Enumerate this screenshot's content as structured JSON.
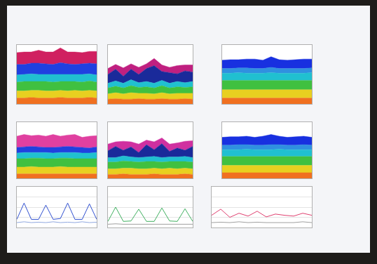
{
  "chart_data": [
    {
      "type": "area",
      "stacked": true,
      "x": [
        0,
        1,
        2,
        3,
        4,
        5,
        6,
        7,
        8,
        9,
        10,
        11
      ],
      "xlim": [
        0,
        11
      ],
      "ylim": [
        0,
        100
      ],
      "yticks": [
        0,
        25,
        50,
        75,
        100
      ],
      "grid": false,
      "tick_labels": false,
      "series": [
        {
          "color": "#f07020",
          "values": [
            10,
            10,
            11,
            10,
            10,
            10,
            11,
            10,
            10,
            10,
            11,
            10
          ]
        },
        {
          "color": "#e8d020",
          "values": [
            12,
            12,
            12,
            13,
            12,
            12,
            12,
            12,
            13,
            12,
            12,
            12
          ]
        },
        {
          "color": "#40c040",
          "values": [
            15,
            16,
            15,
            15,
            16,
            15,
            15,
            16,
            15,
            15,
            16,
            15
          ]
        },
        {
          "color": "#20c0d0",
          "values": [
            12,
            12,
            13,
            12,
            12,
            13,
            12,
            12,
            12,
            13,
            12,
            12
          ]
        },
        {
          "color": "#2040e0",
          "values": [
            18,
            17,
            18,
            19,
            18,
            17,
            20,
            18,
            17,
            18,
            18,
            19
          ]
        },
        {
          "color": "#d02060",
          "values": [
            20,
            21,
            19,
            22,
            20,
            21,
            25,
            20,
            21,
            19,
            20,
            21
          ]
        }
      ]
    },
    {
      "type": "area",
      "stacked": true,
      "x": [
        0,
        1,
        2,
        3,
        4,
        5,
        6,
        7,
        8,
        9,
        10,
        11
      ],
      "xlim": [
        0,
        11
      ],
      "ylim": [
        0,
        100
      ],
      "yticks": [
        0,
        25,
        50,
        75,
        100
      ],
      "grid": false,
      "tick_labels": false,
      "series": [
        {
          "color": "#f07020",
          "values": [
            8,
            9,
            8,
            8,
            9,
            8,
            8,
            9,
            8,
            8,
            9,
            8
          ]
        },
        {
          "color": "#e8d020",
          "values": [
            9,
            10,
            9,
            11,
            9,
            10,
            9,
            10,
            9,
            10,
            9,
            10
          ]
        },
        {
          "color": "#40c040",
          "values": [
            10,
            11,
            10,
            12,
            10,
            11,
            10,
            12,
            10,
            11,
            10,
            11
          ]
        },
        {
          "color": "#20c0d0",
          "values": [
            8,
            9,
            8,
            10,
            8,
            9,
            8,
            9,
            8,
            9,
            8,
            9
          ]
        },
        {
          "color": "#1a2a9a",
          "values": [
            15,
            20,
            12,
            18,
            14,
            22,
            30,
            15,
            18,
            13,
            20,
            16
          ]
        },
        {
          "color": "#c02080",
          "values": [
            10,
            8,
            14,
            9,
            12,
            8,
            12,
            11,
            9,
            14,
            10,
            12
          ]
        }
      ]
    },
    {
      "type": "area",
      "stacked": true,
      "x": [
        0,
        1,
        2,
        3,
        4,
        5,
        6,
        7,
        8,
        9,
        10,
        11
      ],
      "xlim": [
        0,
        11
      ],
      "ylim": [
        0,
        100
      ],
      "yticks": [
        0,
        25,
        50,
        75,
        100
      ],
      "grid": false,
      "tick_labels": false,
      "series": [
        {
          "color": "#f07020",
          "values": [
            10,
            10,
            10,
            10,
            10,
            10,
            10,
            10,
            10,
            10,
            10,
            10
          ]
        },
        {
          "color": "#e8d020",
          "values": [
            14,
            14,
            14,
            14,
            14,
            14,
            14,
            14,
            14,
            14,
            14,
            14
          ]
        },
        {
          "color": "#40c040",
          "values": [
            16,
            16,
            16,
            16,
            16,
            16,
            16,
            16,
            16,
            16,
            16,
            16
          ]
        },
        {
          "color": "#20c0d0",
          "values": [
            12,
            12,
            13,
            12,
            12,
            12,
            13,
            12,
            12,
            12,
            12,
            13
          ]
        },
        {
          "color": "#3090e0",
          "values": [
            8,
            8,
            8,
            9,
            8,
            8,
            9,
            8,
            8,
            8,
            8,
            8
          ]
        },
        {
          "color": "#1830e0",
          "values": [
            14,
            15,
            14,
            15,
            16,
            14,
            18,
            15,
            14,
            15,
            16,
            15
          ]
        }
      ]
    },
    {
      "type": "area",
      "stacked": true,
      "x": [
        0,
        1,
        2,
        3,
        4,
        5,
        6,
        7,
        8,
        9,
        10,
        11
      ],
      "xlim": [
        0,
        11
      ],
      "ylim": [
        0,
        100
      ],
      "yticks": [
        0,
        25,
        50,
        75,
        100
      ],
      "grid": false,
      "tick_labels": false,
      "series": [
        {
          "color": "#f07020",
          "values": [
            8,
            8,
            8,
            8,
            8,
            8,
            8,
            8,
            8,
            8,
            8,
            8
          ]
        },
        {
          "color": "#e8d020",
          "values": [
            12,
            12,
            13,
            12,
            12,
            12,
            13,
            12,
            12,
            12,
            12,
            12
          ]
        },
        {
          "color": "#40c040",
          "values": [
            15,
            15,
            15,
            16,
            15,
            15,
            15,
            16,
            15,
            15,
            15,
            15
          ]
        },
        {
          "color": "#20c0d0",
          "values": [
            10,
            11,
            10,
            10,
            11,
            10,
            10,
            10,
            11,
            10,
            10,
            11
          ]
        },
        {
          "color": "#2040e0",
          "values": [
            10,
            10,
            11,
            10,
            9,
            10,
            10,
            11,
            10,
            10,
            9,
            10
          ]
        },
        {
          "color": "#e040a0",
          "values": [
            20,
            22,
            19,
            21,
            20,
            23,
            19,
            20,
            22,
            18,
            21,
            20
          ]
        }
      ]
    },
    {
      "type": "area",
      "stacked": true,
      "x": [
        0,
        1,
        2,
        3,
        4,
        5,
        6,
        7,
        8,
        9,
        10,
        11
      ],
      "xlim": [
        0,
        11
      ],
      "ylim": [
        0,
        100
      ],
      "yticks": [
        0,
        25,
        50,
        75,
        100
      ],
      "grid": false,
      "tick_labels": false,
      "series": [
        {
          "color": "#f07020",
          "values": [
            7,
            7,
            8,
            7,
            7,
            7,
            8,
            7,
            7,
            7,
            8,
            7
          ]
        },
        {
          "color": "#e8d020",
          "values": [
            10,
            10,
            10,
            11,
            10,
            10,
            10,
            10,
            11,
            10,
            10,
            10
          ]
        },
        {
          "color": "#40c040",
          "values": [
            12,
            12,
            13,
            12,
            12,
            13,
            12,
            12,
            12,
            13,
            12,
            12
          ]
        },
        {
          "color": "#20c0d0",
          "values": [
            8,
            8,
            9,
            8,
            8,
            8,
            9,
            8,
            8,
            8,
            9,
            8
          ]
        },
        {
          "color": "#1a2a9a",
          "values": [
            12,
            20,
            10,
            18,
            9,
            22,
            12,
            25,
            10,
            16,
            11,
            20
          ]
        },
        {
          "color": "#d030a0",
          "values": [
            12,
            8,
            16,
            9,
            15,
            8,
            14,
            10,
            13,
            9,
            16,
            10
          ]
        }
      ]
    },
    {
      "type": "area",
      "stacked": true,
      "x": [
        0,
        1,
        2,
        3,
        4,
        5,
        6,
        7,
        8,
        9,
        10,
        11
      ],
      "xlim": [
        0,
        11
      ],
      "ylim": [
        0,
        100
      ],
      "yticks": [
        0,
        25,
        50,
        75,
        100
      ],
      "grid": false,
      "tick_labels": false,
      "series": [
        {
          "color": "#f07020",
          "values": [
            10,
            10,
            10,
            10,
            10,
            10,
            10,
            10,
            10,
            10,
            10,
            10
          ]
        },
        {
          "color": "#e8d020",
          "values": [
            13,
            13,
            13,
            13,
            13,
            13,
            13,
            13,
            13,
            13,
            13,
            13
          ]
        },
        {
          "color": "#40c040",
          "values": [
            16,
            16,
            16,
            16,
            16,
            16,
            16,
            16,
            16,
            16,
            16,
            16
          ]
        },
        {
          "color": "#20c0d0",
          "values": [
            12,
            12,
            12,
            13,
            12,
            12,
            12,
            13,
            12,
            12,
            12,
            12
          ]
        },
        {
          "color": "#3090e0",
          "values": [
            8,
            8,
            9,
            8,
            8,
            8,
            9,
            8,
            8,
            8,
            9,
            8
          ]
        },
        {
          "color": "#1830e0",
          "values": [
            14,
            15,
            14,
            15,
            14,
            16,
            18,
            15,
            14,
            15,
            15,
            14
          ]
        }
      ]
    },
    {
      "type": "line",
      "x": [
        0,
        1,
        2,
        3,
        4,
        5,
        6,
        7,
        8,
        9,
        10,
        11
      ],
      "xlim": [
        0,
        11
      ],
      "ylim": [
        0,
        100
      ],
      "yticks": [
        0,
        25,
        50,
        75,
        100
      ],
      "grid": true,
      "tick_labels": false,
      "series": [
        {
          "color": "#3050d0",
          "values": [
            20,
            60,
            20,
            20,
            55,
            20,
            22,
            60,
            20,
            20,
            58,
            20
          ]
        },
        {
          "color": "#90a8e0",
          "values": [
            12,
            14,
            12,
            13,
            12,
            14,
            12,
            13,
            12,
            14,
            12,
            13
          ]
        }
      ]
    },
    {
      "type": "line",
      "x": [
        0,
        1,
        2,
        3,
        4,
        5,
        6,
        7,
        8,
        9,
        10,
        11
      ],
      "xlim": [
        0,
        11
      ],
      "ylim": [
        0,
        100
      ],
      "yticks": [
        0,
        25,
        50,
        75,
        100
      ],
      "grid": true,
      "tick_labels": false,
      "series": [
        {
          "color": "#40b060",
          "values": [
            15,
            50,
            15,
            16,
            45,
            15,
            15,
            48,
            16,
            15,
            46,
            15
          ]
        },
        {
          "color": "#a0a0a0",
          "values": [
            8,
            9,
            8,
            8,
            9,
            8,
            8,
            9,
            8,
            8,
            9,
            8
          ]
        }
      ]
    },
    {
      "type": "line",
      "x": [
        0,
        1,
        2,
        3,
        4,
        5,
        6,
        7,
        8,
        9,
        10,
        11
      ],
      "xlim": [
        0,
        11
      ],
      "ylim": [
        0,
        100
      ],
      "yticks": [
        0,
        25,
        50,
        75,
        100
      ],
      "grid": true,
      "tick_labels": false,
      "series": [
        {
          "color": "#e04070",
          "values": [
            30,
            45,
            25,
            35,
            28,
            40,
            26,
            33,
            30,
            28,
            35,
            30
          ]
        },
        {
          "color": "#a0a0a0",
          "values": [
            12,
            13,
            12,
            14,
            12,
            13,
            12,
            12,
            13,
            12,
            14,
            12
          ]
        }
      ]
    }
  ]
}
